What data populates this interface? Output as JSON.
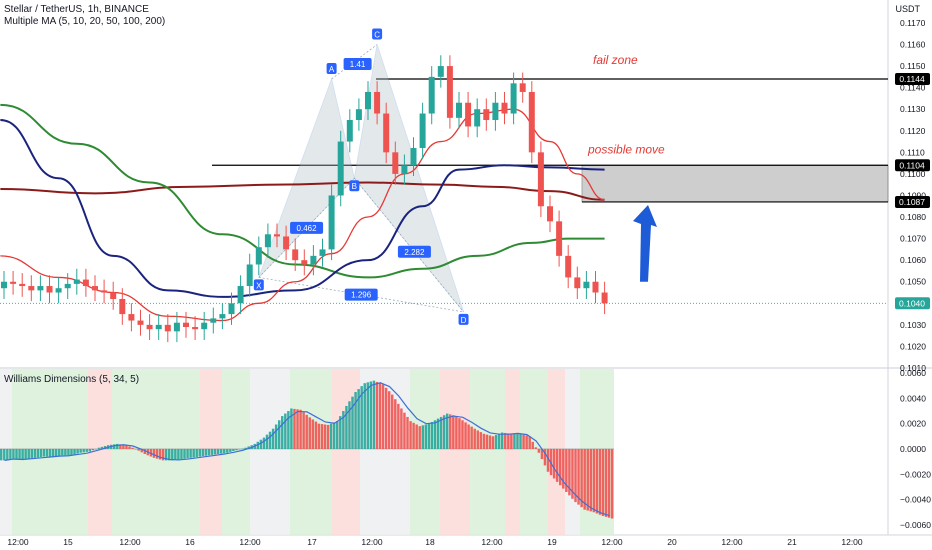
{
  "header": {
    "title": "Stellar / TetherUS, 1h, BINANCE",
    "ma_legend": "Multiple MA (5, 10, 20, 50, 100, 200)",
    "currency": "USDT"
  },
  "colors": {
    "candle_up": "#26a69a",
    "candle_down": "#ef5350",
    "ma_fast_red": "#e53935",
    "ma_orange": "#ff9800",
    "ma_green": "#2e8b32",
    "ma_navy": "#1a237e",
    "ma_darkred": "#8b1a1a",
    "harmonic_fill": "#b0bec5",
    "target_box": "#9e9e9e",
    "annotation_red": "#e53935",
    "arrow_blue": "#1e5bd6",
    "badge_blue": "#2962ff",
    "wd_green_bg": "#d8f0d8",
    "wd_red_bg": "#fadbd8",
    "wd_grey_bg": "#eceff1"
  },
  "annotations": {
    "fail_zone": "fail zone",
    "possible_move": "possible move"
  },
  "pattern": {
    "points": [
      {
        "label": "X",
        "t": 28.0,
        "price": 0.1052
      },
      {
        "label": "A",
        "t": 36.0,
        "price": 0.1144
      },
      {
        "label": "B",
        "t": 38.5,
        "price": 0.1098
      },
      {
        "label": "C",
        "t": 41.0,
        "price": 0.116
      },
      {
        "label": "D",
        "t": 50.5,
        "price": 0.1036
      }
    ],
    "ratios": [
      "0.462",
      "1.41",
      "2.282",
      "1.296"
    ]
  },
  "levels": {
    "fail_line": 0.1144,
    "upper_line": 0.1104,
    "lower_line": 0.1087,
    "current": 0.104
  },
  "chart_data": [
    {
      "type": "line",
      "title": "Stellar / TetherUS, 1h, BINANCE",
      "subtitle": "Multiple MA (5, 10, 20, 50, 100, 200)",
      "x_ticks": [
        "12:00",
        "15",
        "12:00",
        "16",
        "12:00",
        "17",
        "12:00",
        "18",
        "12:00",
        "19",
        "12:00",
        "20",
        "12:00",
        "21",
        "12:00"
      ],
      "y_ticks": [
        "0.1010",
        "0.1020",
        "0.1030",
        "0.1040",
        "0.1050",
        "0.1060",
        "0.1070",
        "0.1080",
        "0.1090",
        "0.1100",
        "0.1110",
        "0.1120",
        "0.1130",
        "0.1140",
        "0.1150",
        "0.1160",
        "0.1170"
      ],
      "y_range": [
        0.101,
        0.1176
      ],
      "price_labels": [
        "0.1144",
        "0.1104",
        "0.1087",
        "0.1040"
      ],
      "candles_close": [
        0.105,
        0.1049,
        0.1048,
        0.1046,
        0.1048,
        0.1045,
        0.1047,
        0.1049,
        0.1051,
        0.1048,
        0.1046,
        0.1045,
        0.1042,
        0.1035,
        0.1032,
        0.103,
        0.1028,
        0.103,
        0.1027,
        0.1031,
        0.1029,
        0.1028,
        0.1031,
        0.1033,
        0.1035,
        0.104,
        0.1048,
        0.1058,
        0.1066,
        0.1072,
        0.1071,
        0.1065,
        0.106,
        0.1058,
        0.1062,
        0.1065,
        0.109,
        0.1115,
        0.1125,
        0.113,
        0.1138,
        0.1128,
        0.111,
        0.11,
        0.1104,
        0.1112,
        0.1128,
        0.1145,
        0.115,
        0.1126,
        0.1133,
        0.1122,
        0.113,
        0.1125,
        0.1133,
        0.1128,
        0.1142,
        0.1138,
        0.111,
        0.1085,
        0.1078,
        0.1062,
        0.1052,
        0.1047,
        0.105,
        0.1045,
        0.104
      ],
      "series": [
        {
          "values_note": "",
          "name": "",
          "ma": 20
        },
        {
          "name": "",
          "ma": 50
        },
        {
          "name": "",
          "ma": 100
        },
        {
          "name": "",
          "ma": 200
        }
      ]
    },
    {
      "type": "bar",
      "title": "Williams Dimensions (5, 34, 5)",
      "y_ticks": [
        "0.0060",
        "0.0040",
        "0.0020",
        "0.0000",
        "−0.0020",
        "−0.0040",
        "−0.0060"
      ],
      "y_range": [
        -0.0068,
        0.0064
      ],
      "values": [
        -0.0009,
        -0.0008,
        -0.0008,
        -0.0007,
        -0.0006,
        -0.0006,
        -0.0005,
        -0.0005,
        -0.0003,
        -0.0002,
        0.0001,
        0.0003,
        0.0004,
        0.0003,
        0.0,
        -0.0004,
        -0.0007,
        -0.0009,
        -0.0009,
        -0.0008,
        -0.0007,
        -0.0006,
        -0.0005,
        -0.0004,
        -0.0003,
        -0.0001,
        0.0001,
        0.0004,
        0.0009,
        0.0016,
        0.0026,
        0.0032,
        0.0031,
        0.0025,
        0.002,
        0.0019,
        0.0022,
        0.0034,
        0.0045,
        0.0052,
        0.0054,
        0.0051,
        0.0043,
        0.0032,
        0.0022,
        0.0018,
        0.002,
        0.0024,
        0.0028,
        0.0026,
        0.0021,
        0.0016,
        0.0012,
        0.001,
        0.0013,
        0.0012,
        0.0012,
        0.001,
        -0.0003,
        -0.0018,
        -0.0026,
        -0.0034,
        -0.0042,
        -0.0048,
        -0.005,
        -0.0053,
        -0.0055
      ]
    }
  ]
}
